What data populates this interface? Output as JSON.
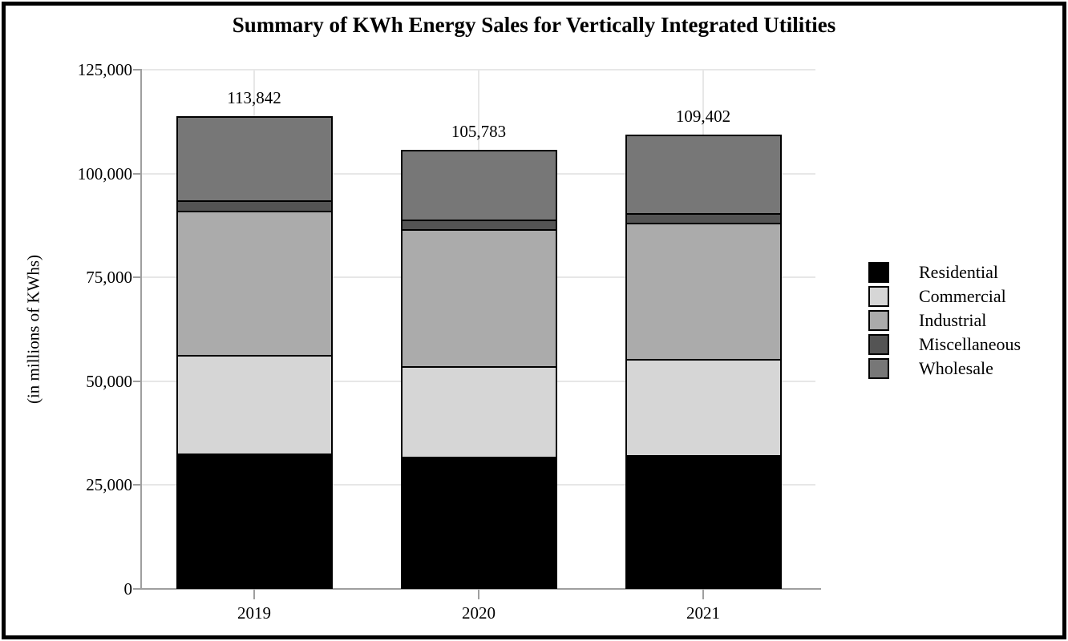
{
  "chart_data": {
    "type": "bar",
    "stacked": true,
    "title": "Summary of KWh Energy Sales for Vertically Integrated Utilities",
    "ylabel": "(in millions of KWhs)",
    "categories": [
      "2019",
      "2020",
      "2021"
    ],
    "series": [
      {
        "name": "Residential",
        "color": "#000000",
        "values": [
          32600,
          31800,
          32200
        ]
      },
      {
        "name": "Commercial",
        "color": "#d6d6d6",
        "values": [
          23800,
          21850,
          23100
        ]
      },
      {
        "name": "Industrial",
        "color": "#ababab",
        "values": [
          34700,
          32900,
          32800
        ]
      },
      {
        "name": "Miscellaneous",
        "color": "#545454",
        "values": [
          2500,
          2300,
          2300
        ]
      },
      {
        "name": "Wholesale",
        "color": "#777777",
        "values": [
          20242,
          16933,
          19002
        ]
      }
    ],
    "totals": [
      113842,
      105783,
      109402
    ],
    "total_labels": [
      "113,842",
      "105,783",
      "109,402"
    ],
    "ylim": [
      0,
      125000
    ],
    "yticks": [
      0,
      25000,
      50000,
      75000,
      100000,
      125000
    ],
    "ytick_labels": [
      "0",
      "25,000",
      "50,000",
      "75,000",
      "100,000",
      "125,000"
    ],
    "grid": true,
    "legend_position": "right",
    "legend_items": [
      "Residential",
      "Commercial",
      "Industrial",
      "Miscellaneous",
      "Wholesale"
    ],
    "colors": {
      "grid": "#e7e7e7",
      "axis": "#9f9f9f",
      "bar_border": "#000000",
      "background": "#ffffff"
    }
  }
}
